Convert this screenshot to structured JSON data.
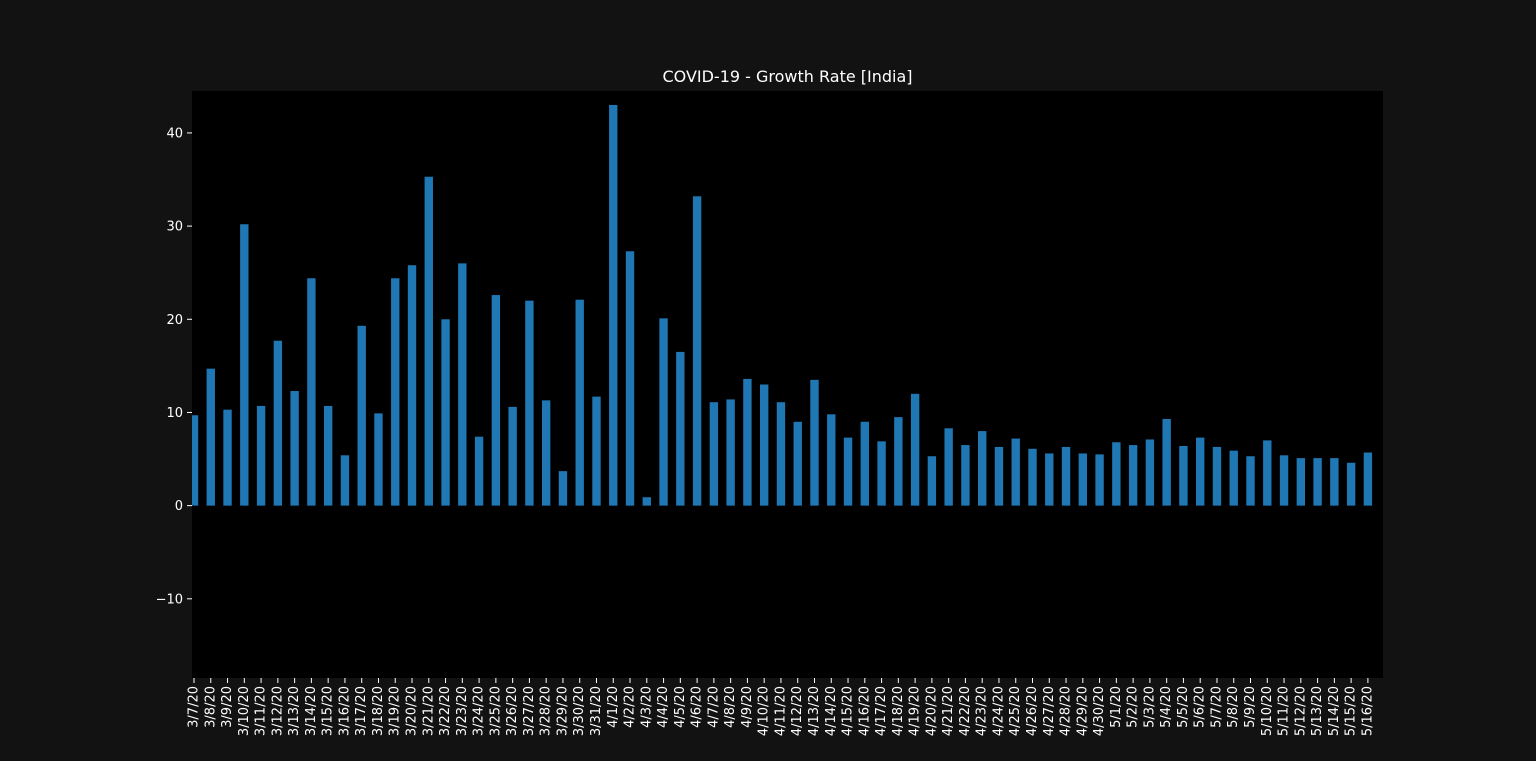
{
  "chart_data": {
    "type": "bar",
    "title": "COVID-19 - Growth Rate [India]",
    "xlabel": "",
    "ylabel": "",
    "ylim": [
      -18.5,
      44.5
    ],
    "yticks": [
      -10,
      0,
      10,
      20,
      30,
      40
    ],
    "grid": false,
    "legend": "none",
    "categories": [
      "3/7/20",
      "3/8/20",
      "3/9/20",
      "3/10/20",
      "3/11/20",
      "3/12/20",
      "3/13/20",
      "3/14/20",
      "3/15/20",
      "3/16/20",
      "3/17/20",
      "3/18/20",
      "3/19/20",
      "3/20/20",
      "3/21/20",
      "3/22/20",
      "3/23/20",
      "3/24/20",
      "3/25/20",
      "3/26/20",
      "3/27/20",
      "3/28/20",
      "3/29/20",
      "3/30/20",
      "3/31/20",
      "4/1/20",
      "4/2/20",
      "4/3/20",
      "4/4/20",
      "4/5/20",
      "4/6/20",
      "4/7/20",
      "4/8/20",
      "4/9/20",
      "4/10/20",
      "4/11/20",
      "4/12/20",
      "4/13/20",
      "4/14/20",
      "4/15/20",
      "4/16/20",
      "4/17/20",
      "4/18/20",
      "4/19/20",
      "4/20/20",
      "4/21/20",
      "4/22/20",
      "4/23/20",
      "4/24/20",
      "4/25/20",
      "4/26/20",
      "4/27/20",
      "4/28/20",
      "4/29/20",
      "4/30/20",
      "5/1/20",
      "5/2/20",
      "5/3/20",
      "5/4/20",
      "5/5/20",
      "5/6/20",
      "5/7/20",
      "5/8/20",
      "5/9/20",
      "5/10/20",
      "5/11/20",
      "5/12/20",
      "5/13/20",
      "5/14/20",
      "5/15/20",
      "5/16/20"
    ],
    "values": [
      9.7,
      14.7,
      10.3,
      30.2,
      10.7,
      17.7,
      12.3,
      24.4,
      10.7,
      5.4,
      19.3,
      9.9,
      24.4,
      25.8,
      35.3,
      20.0,
      26.0,
      7.4,
      22.6,
      10.6,
      22.0,
      11.3,
      3.7,
      22.1,
      11.7,
      43.0,
      27.3,
      0.9,
      20.1,
      16.5,
      33.2,
      11.1,
      11.4,
      13.6,
      13.0,
      11.1,
      9.0,
      13.5,
      9.8,
      7.3,
      9.0,
      6.9,
      9.5,
      12.0,
      5.3,
      8.3,
      6.5,
      8.0,
      6.3,
      7.2,
      6.1,
      5.6,
      6.3,
      5.6,
      5.5,
      6.8,
      6.5,
      7.1,
      9.3,
      6.4,
      7.3,
      6.3,
      5.9,
      5.3,
      7.0,
      5.4,
      5.1,
      5.1,
      5.1,
      4.6,
      5.7
    ],
    "colors": {
      "bar": "#1f77b4",
      "plot_bg": "#000000",
      "figure_bg": "#121212",
      "text": "#ffffff"
    }
  }
}
